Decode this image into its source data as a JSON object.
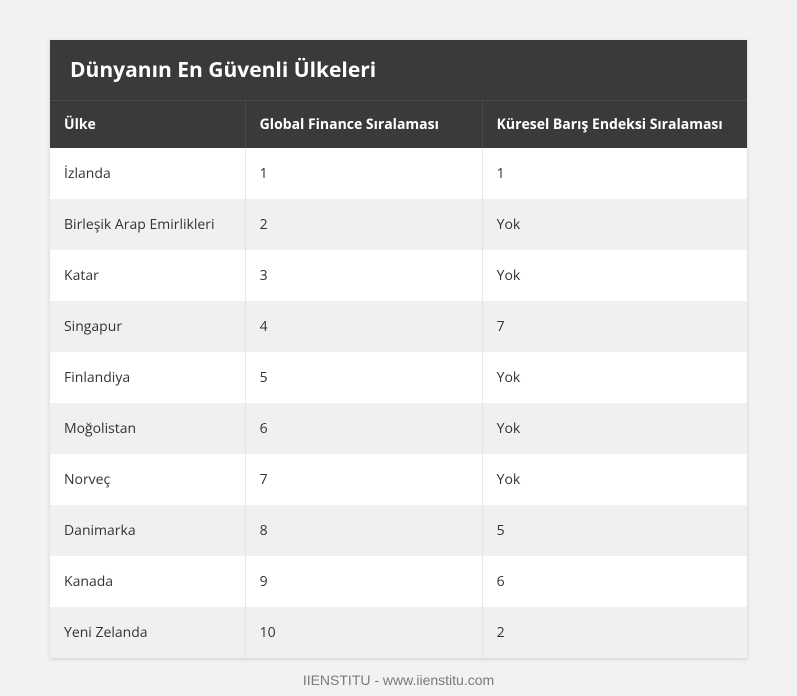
{
  "title": "Dünyanın En Güvenli Ülkeleri",
  "columns": {
    "country": "Ülke",
    "global_finance": "Global Finance Sıralaması",
    "gpi": "Küresel Barış Endeksi Sıralaması"
  },
  "rows": [
    {
      "country": "İzlanda",
      "gf": "1",
      "gpi": "1"
    },
    {
      "country": "Birleşik Arap Emirlikleri",
      "gf": "2",
      "gpi": "Yok"
    },
    {
      "country": "Katar",
      "gf": "3",
      "gpi": "Yok"
    },
    {
      "country": "Singapur",
      "gf": "4",
      "gpi": "7"
    },
    {
      "country": "Finlandiya",
      "gf": "5",
      "gpi": "Yok"
    },
    {
      "country": "Moğolistan",
      "gf": "6",
      "gpi": "Yok"
    },
    {
      "country": "Norveç",
      "gf": "7",
      "gpi": "Yok"
    },
    {
      "country": "Danimarka",
      "gf": "8",
      "gpi": "5"
    },
    {
      "country": "Kanada",
      "gf": "9",
      "gpi": "6"
    },
    {
      "country": "Yeni Zelanda",
      "gf": "10",
      "gpi": "2"
    }
  ],
  "footer": "IIENSTITU - www.iienstitu.com",
  "style": {
    "page_bg": "#f2f2f2",
    "header_bg": "#3a3a3a",
    "header_text": "#ffffff",
    "row_even_bg": "#f0f0f0",
    "row_odd_bg": "#ffffff",
    "cell_text": "#333333",
    "cell_border": "#e6e6e6",
    "footer_text": "#7a7a7a",
    "title_fontsize": 21,
    "header_fontsize": 14,
    "cell_fontsize": 14
  }
}
